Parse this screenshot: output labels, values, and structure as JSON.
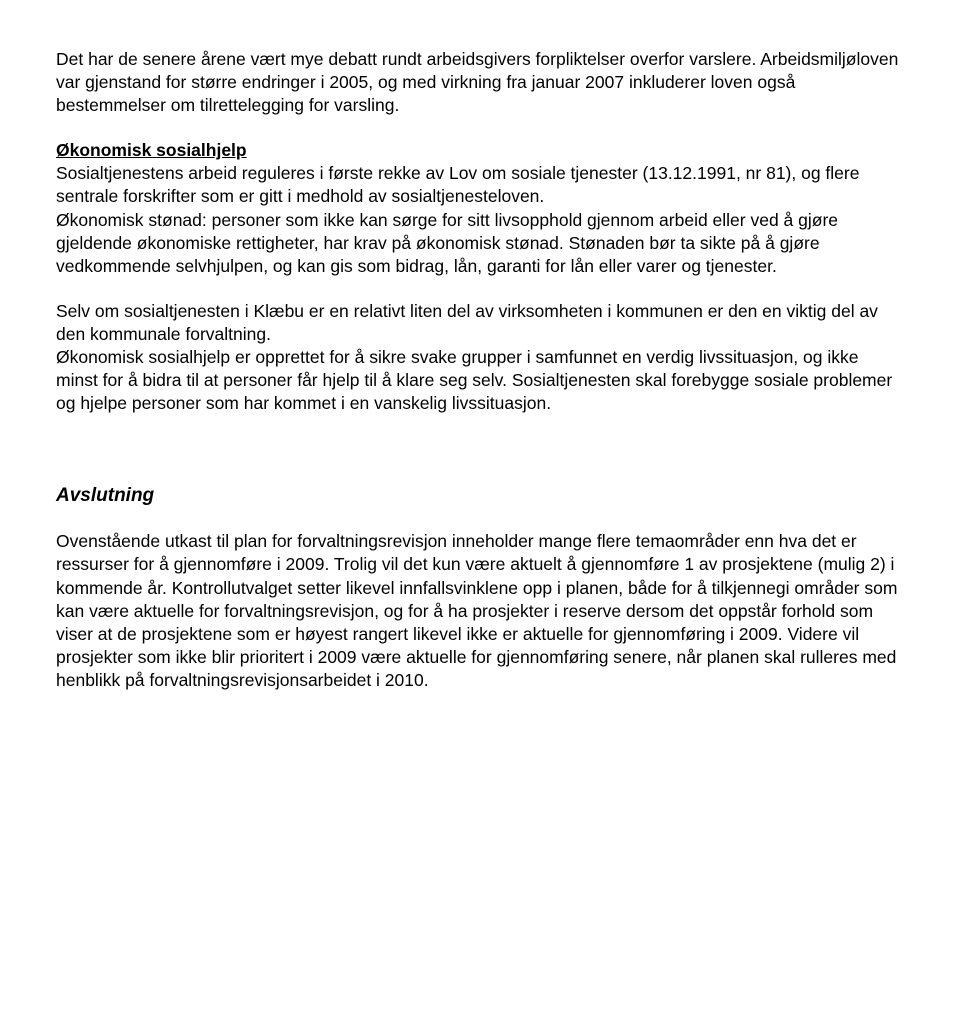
{
  "p1": "Det har de senere årene vært mye debatt rundt arbeidsgivers forpliktelser overfor varslere. Arbeidsmiljøloven var gjenstand for større endringer i 2005, og med virkning fra januar 2007 inkluderer loven også bestemmelser om tilrettelegging for varsling.",
  "heading1": "Økonomisk sosialhjelp",
  "p2": "Sosialtjenestens arbeid reguleres i første rekke av Lov om sosiale tjenester (13.12.1991, nr 81), og flere sentrale forskrifter som er gitt i medhold av sosialtjenesteloven.",
  "p3": "Økonomisk stønad: personer som ikke kan sørge for sitt livsopphold gjennom arbeid eller ved å gjøre gjeldende økonomiske rettigheter, har krav på økonomisk stønad. Stønaden bør ta sikte på å gjøre vedkommende selvhjulpen, og kan gis som bidrag, lån, garanti for lån eller varer og tjenester.",
  "p4": "Selv om sosialtjenesten i Klæbu er en relativt liten del av virksomheten i kommunen er den en viktig del av den kommunale forvaltning.",
  "p5": "Økonomisk sosialhjelp er opprettet for å sikre svake grupper i samfunnet en verdig livssituasjon, og ikke minst for å bidra til at personer får hjelp til å klare seg selv. Sosialtjenesten skal forebygge sosiale problemer og hjelpe personer som har kommet i en vanskelig livssituasjon.",
  "heading2": "Avslutning",
  "p6": "Ovenstående utkast til plan for forvaltningsrevisjon inneholder mange flere temaområder enn hva det er ressurser for å gjennomføre i 2009. Trolig vil det kun være aktuelt å gjennomføre 1 av prosjektene (mulig 2) i kommende år. Kontrollutvalget setter likevel innfallsvinklene opp i planen, både for å tilkjennegi områder som kan være aktuelle for forvaltningsrevisjon, og for å ha prosjekter i reserve dersom det oppstår forhold som viser at de prosjektene som er høyest rangert likevel ikke er aktuelle for gjennomføring i 2009. Videre vil prosjekter som ikke blir prioritert i 2009 være aktuelle for gjennomføring senere, når planen skal rulleres med henblikk på forvaltningsrevisjonsarbeidet i 2010."
}
